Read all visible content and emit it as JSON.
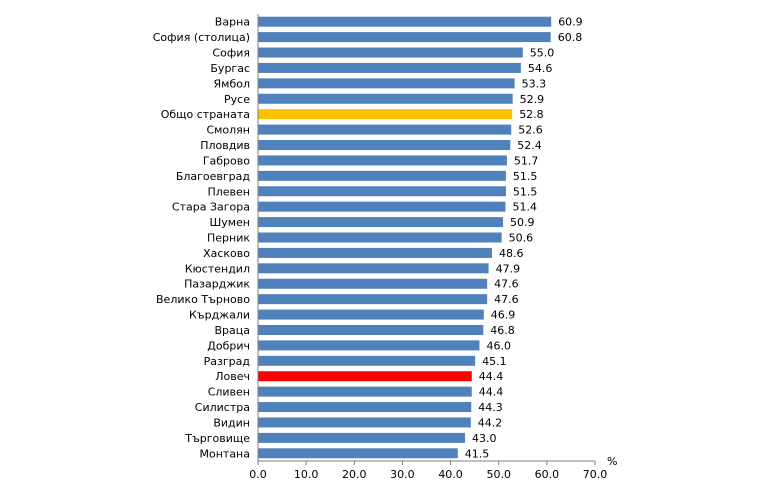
{
  "chart_data": {
    "type": "bar",
    "orientation": "horizontal",
    "title": "",
    "xlabel": "",
    "ylabel": "",
    "unit": "%",
    "xlim": [
      0,
      70
    ],
    "ticks": [
      0,
      10,
      20,
      30,
      40,
      50,
      60,
      70
    ],
    "tick_labels": [
      "0.0",
      "10.0",
      "20.0",
      "30.0",
      "40.0",
      "50.0",
      "60.0",
      "70.0"
    ],
    "grid": false,
    "legend": "none",
    "colors": {
      "default": "#4f81bd",
      "national": "#ffc000",
      "highlight": "#ff0000"
    },
    "categories": [
      "Варна",
      "София (столица)",
      "София",
      "Бургас",
      "Ямбол",
      "Русе",
      "Общо страната",
      "Смолян",
      "Пловдив",
      "Габрово",
      "Благоевград",
      "Плевен",
      "Стара Загора",
      "Шумен",
      "Перник",
      "Хасково",
      "Кюстендил",
      "Пазарджик",
      "Велико Търново",
      "Кърджали",
      "Враца",
      "Добрич",
      "Разград",
      "Ловеч",
      "Сливен",
      "Силистра",
      "Видин",
      "Търговище",
      "Монтана"
    ],
    "values": [
      60.9,
      60.8,
      55.0,
      54.6,
      53.3,
      52.9,
      52.8,
      52.6,
      52.4,
      51.7,
      51.5,
      51.5,
      51.4,
      50.9,
      50.6,
      48.6,
      47.9,
      47.6,
      47.6,
      46.9,
      46.8,
      46.0,
      45.1,
      44.4,
      44.4,
      44.3,
      44.2,
      43.0,
      41.5
    ],
    "value_labels": [
      "60.9",
      "60.8",
      "55.0",
      "54.6",
      "53.3",
      "52.9",
      "52.8",
      "52.6",
      "52.4",
      "51.7",
      "51.5",
      "51.5",
      "51.4",
      "50.9",
      "50.6",
      "48.6",
      "47.9",
      "47.6",
      "47.6",
      "46.9",
      "46.8",
      "46.0",
      "45.1",
      "44.4",
      "44.4",
      "44.3",
      "44.2",
      "43.0",
      "41.5"
    ],
    "bar_color_keys": [
      "default",
      "default",
      "default",
      "default",
      "default",
      "default",
      "national",
      "default",
      "default",
      "default",
      "default",
      "default",
      "default",
      "default",
      "default",
      "default",
      "default",
      "default",
      "default",
      "default",
      "default",
      "default",
      "default",
      "highlight",
      "default",
      "default",
      "default",
      "default",
      "default"
    ]
  }
}
